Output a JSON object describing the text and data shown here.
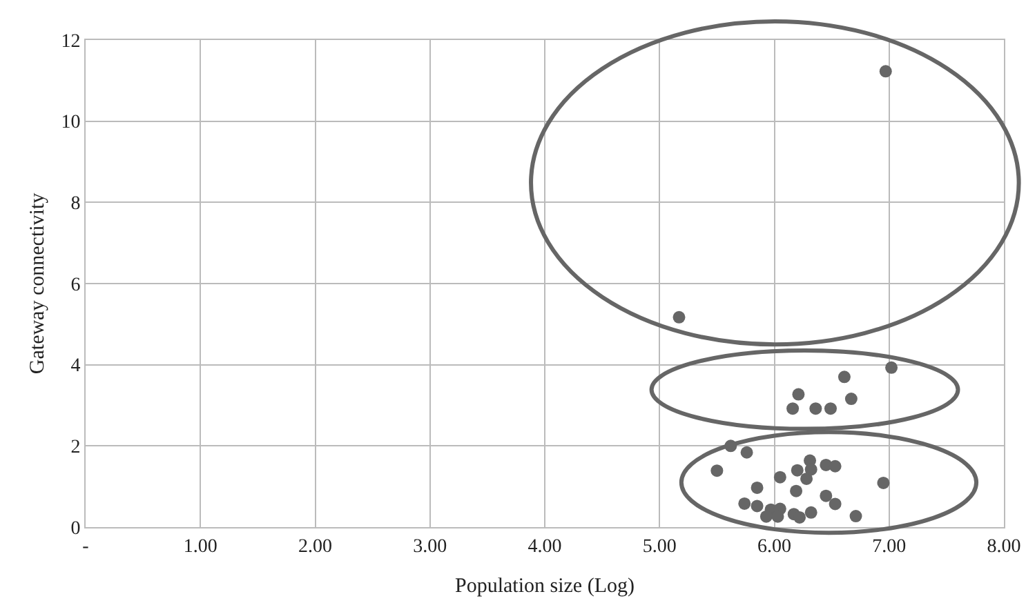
{
  "chart_data": {
    "type": "scatter",
    "xlabel": "Population size (Log)",
    "ylabel": "Gateway connectivity",
    "x": [
      7.02,
      6.61,
      6.21,
      6.67,
      6.16,
      6.36,
      6.49,
      5.62,
      5.76,
      5.5,
      6.31,
      6.45,
      6.53,
      6.2,
      6.28,
      6.32,
      6.05,
      5.85,
      6.19,
      6.95,
      6.45,
      6.53,
      5.74,
      5.85,
      5.97,
      6.05,
      5.93,
      6.03,
      6.17,
      6.22,
      6.32,
      6.71,
      6.97,
      5.17
    ],
    "series": [
      {
        "color": "#666666",
        "values": [
          3.93,
          3.7,
          3.27,
          3.16,
          2.92,
          2.92,
          2.92,
          2.0,
          1.84,
          1.39,
          1.64,
          1.53,
          1.5,
          1.4,
          1.19,
          1.42,
          1.23,
          0.97,
          0.89,
          1.09,
          0.77,
          0.57,
          0.58,
          0.52,
          0.43,
          0.45,
          0.26,
          0.26,
          0.32,
          0.24,
          0.36,
          0.27,
          11.23,
          5.17
        ]
      }
    ],
    "xlim": [
      0,
      8
    ],
    "ylim": [
      0,
      12
    ],
    "xticks": [
      {
        "value": 0,
        "label": "-"
      },
      {
        "value": 1,
        "label": "1.00"
      },
      {
        "value": 2,
        "label": "2.00"
      },
      {
        "value": 3,
        "label": "3.00"
      },
      {
        "value": 4,
        "label": "4.00"
      },
      {
        "value": 5,
        "label": "5.00"
      },
      {
        "value": 6,
        "label": "6.00"
      },
      {
        "value": 7,
        "label": "7.00"
      },
      {
        "value": 8,
        "label": "8.00"
      }
    ],
    "yticks": [
      0,
      2,
      4,
      6,
      8,
      10,
      12
    ],
    "grid": true,
    "marker": "circle"
  }
}
